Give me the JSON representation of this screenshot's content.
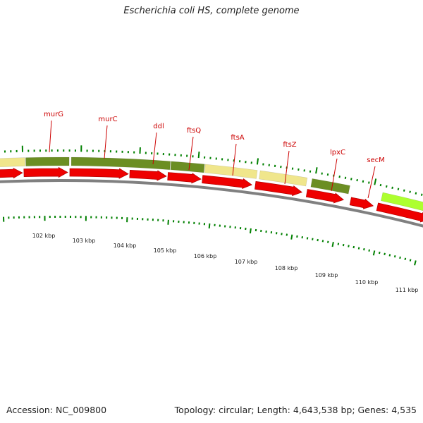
{
  "title": "Escherichia coli HS, complete genome",
  "footer": {
    "accession": "Accession: NC_009800",
    "summary": "Topology: circular; Length: 4,643,538 bp; Genes: 4,535"
  },
  "colors": {
    "gene_label": "#cc0000",
    "cds_arrow": "#ee0000",
    "cds_dark": "#b00000",
    "feature_olive": "#6b8e23",
    "feature_khaki": "#f0e68c",
    "feature_lime": "#adff2f",
    "tick_green": "#008000",
    "backbone": "#808080"
  },
  "gene_labels": [
    "murG",
    "murC",
    "ddl",
    "ftsQ",
    "ftsA",
    "ftsZ",
    "lpxC",
    "secM"
  ],
  "scale_labels": [
    "102 kbp",
    "103 kbp",
    "104 kbp",
    "105 kbp",
    "106 kbp",
    "107 kbp",
    "108 kbp",
    "109 kbp",
    "110 kbp",
    "111 kbp"
  ]
}
